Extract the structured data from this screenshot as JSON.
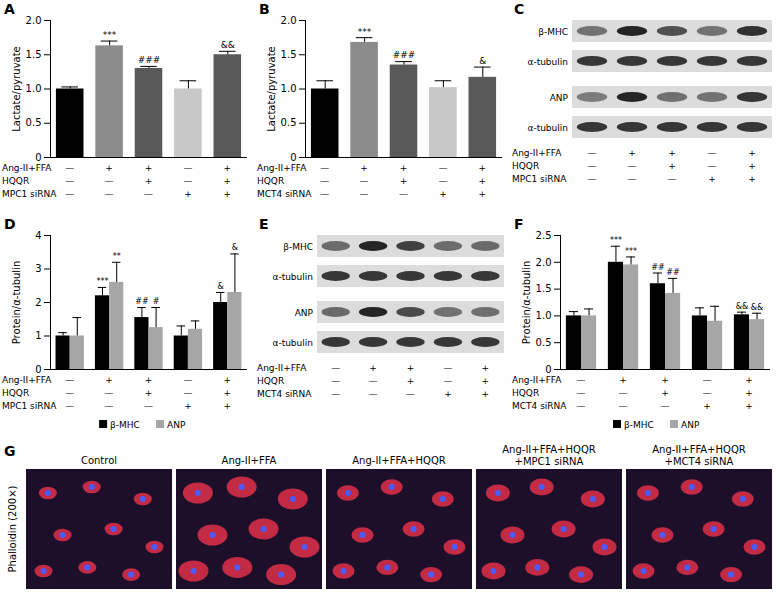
{
  "chart_data": [
    {
      "panel": "A",
      "type": "bar",
      "y_label": "Lactate/pyruvate",
      "values": [
        1.0,
        1.63,
        1.3,
        1.0,
        1.5
      ],
      "errors": [
        0.03,
        0.07,
        0.03,
        0.12,
        0.05
      ],
      "annotations": [
        null,
        "***",
        "###",
        null,
        "&&"
      ],
      "colors": [
        "#000000",
        "#8c8c8c",
        "#595959",
        "#c8c8c8",
        "#595959"
      ],
      "ylim": [
        0,
        2
      ],
      "yticks": [
        0,
        0.5,
        {
          "value": 1,
          "label": "1.0"
        },
        1.5,
        {
          "value": 2,
          "label": "2.0"
        }
      ],
      "conditions": [
        {
          "label": "Ang-II+FFA",
          "signs": [
            "—",
            "+",
            "+",
            "—",
            "+"
          ]
        },
        {
          "label": "HQQR",
          "signs": [
            "—",
            "—",
            "+",
            "—",
            "+"
          ]
        },
        {
          "label": "MPC1 siRNA",
          "signs": [
            "—",
            "—",
            "—",
            "+",
            "+"
          ]
        }
      ]
    },
    {
      "panel": "B",
      "type": "bar",
      "y_label": "Lactate/pyruvate",
      "values": [
        1.0,
        1.68,
        1.35,
        1.02,
        1.17
      ],
      "errors": [
        0.12,
        0.07,
        0.05,
        0.1,
        0.15
      ],
      "annotations": [
        null,
        "***",
        "###",
        null,
        "&"
      ],
      "colors": [
        "#000000",
        "#8c8c8c",
        "#595959",
        "#c8c8c8",
        "#595959"
      ],
      "ylim": [
        0,
        2
      ],
      "yticks": [
        0,
        0.5,
        {
          "value": 1,
          "label": "1.0"
        },
        1.5,
        {
          "value": 2,
          "label": "2.0"
        }
      ],
      "conditions": [
        {
          "label": "Ang-II+FFA",
          "signs": [
            "—",
            "+",
            "+",
            "—",
            "+"
          ]
        },
        {
          "label": "HQQR",
          "signs": [
            "—",
            "—",
            "+",
            "—",
            "+"
          ]
        },
        {
          "label": "MCT4 siRNA",
          "signs": [
            "—",
            "—",
            "—",
            "+",
            "+"
          ]
        }
      ]
    },
    {
      "panel": "D",
      "type": "bar",
      "y_label": "Protein/α-tubulin",
      "legend": "bottom",
      "series": [
        {
          "name": "β-MHC",
          "color": "#000000",
          "values": [
            1.0,
            2.2,
            1.55,
            1.0,
            2.0
          ],
          "errors": [
            0.1,
            0.25,
            0.3,
            0.3,
            0.3
          ],
          "annotations": [
            null,
            "***",
            "##",
            null,
            "&"
          ]
        },
        {
          "name": "ANP",
          "color": "#a6a6a6",
          "values": [
            1.0,
            2.6,
            1.25,
            1.2,
            2.3
          ],
          "errors": [
            0.55,
            0.6,
            0.6,
            0.25,
            1.15
          ],
          "annotations": [
            null,
            "**",
            "#",
            null,
            "&"
          ]
        }
      ],
      "ylim": [
        0,
        4
      ],
      "yticks": [
        0,
        1,
        2,
        3,
        4
      ],
      "conditions": [
        {
          "label": "Ang-II+FFA",
          "signs": [
            "—",
            "+",
            "+",
            "—",
            "+"
          ]
        },
        {
          "label": "HQQR",
          "signs": [
            "—",
            "—",
            "+",
            "—",
            "+"
          ]
        },
        {
          "label": "MPC1 siRNA",
          "signs": [
            "—",
            "—",
            "—",
            "+",
            "+"
          ]
        }
      ]
    },
    {
      "panel": "F",
      "type": "bar",
      "y_label": "Protein/α-tubulin",
      "legend": "bottom",
      "series": [
        {
          "name": "β-MHC",
          "color": "#000000",
          "values": [
            1.0,
            2.0,
            1.6,
            1.0,
            1.02
          ],
          "errors": [
            0.08,
            0.3,
            0.2,
            0.15,
            0.05
          ],
          "annotations": [
            null,
            "***",
            "##",
            null,
            "&&"
          ]
        },
        {
          "name": "ANP",
          "color": "#a6a6a6",
          "values": [
            1.0,
            1.95,
            1.42,
            0.9,
            0.93
          ],
          "errors": [
            0.13,
            0.15,
            0.28,
            0.28,
            0.12
          ],
          "annotations": [
            null,
            "***",
            "##",
            null,
            "&&"
          ]
        }
      ],
      "ylim": [
        0,
        2.5
      ],
      "yticks": [
        0,
        0.5,
        {
          "value": 1,
          "label": "1.0"
        },
        1.5,
        {
          "value": 2,
          "label": "2.0"
        },
        2.5
      ],
      "conditions": [
        {
          "label": "Ang-II+FFA",
          "signs": [
            "—",
            "+",
            "+",
            "—",
            "+"
          ]
        },
        {
          "label": "HQQR",
          "signs": [
            "—",
            "—",
            "+",
            "—",
            "+"
          ]
        },
        {
          "label": "MCT4 siRNA",
          "signs": [
            "—",
            "—",
            "—",
            "+",
            "+"
          ]
        }
      ]
    }
  ],
  "blot_panels": [
    {
      "panel": "C",
      "rows": [
        "β-MHC",
        "α-tubulin",
        "ANP",
        "α-tubulin"
      ],
      "conditions": [
        {
          "label": "Ang-II+FFA",
          "signs": [
            "—",
            "+",
            "+",
            "—",
            "+"
          ]
        },
        {
          "label": "HQQR",
          "signs": [
            "—",
            "—",
            "+",
            "—",
            "+"
          ]
        },
        {
          "label": "MPC1 siRNA",
          "signs": [
            "—",
            "—",
            "—",
            "+",
            "+"
          ]
        }
      ]
    },
    {
      "panel": "E",
      "rows": [
        "β-MHC",
        "α-tubulin",
        "ANP",
        "α-tubulin"
      ],
      "conditions": [
        {
          "label": "Ang-II+FFA",
          "signs": [
            "—",
            "+",
            "+",
            "—",
            "+"
          ]
        },
        {
          "label": "HQQR",
          "signs": [
            "—",
            "—",
            "+",
            "—",
            "+"
          ]
        },
        {
          "label": "MCT4 siRNA",
          "signs": [
            "—",
            "—",
            "—",
            "+",
            "+"
          ]
        }
      ]
    }
  ],
  "image_panel": {
    "panel": "G",
    "stain_label": "Phalloidin (200×)",
    "titles": [
      "Control",
      "Ang-II+FFA",
      "Ang-II+FFA+HQQR",
      "Ang-II+FFA+HQQR+MPC1 siRNA",
      "Ang-II+FFA+HQQR+MCT4 siRNA"
    ]
  }
}
